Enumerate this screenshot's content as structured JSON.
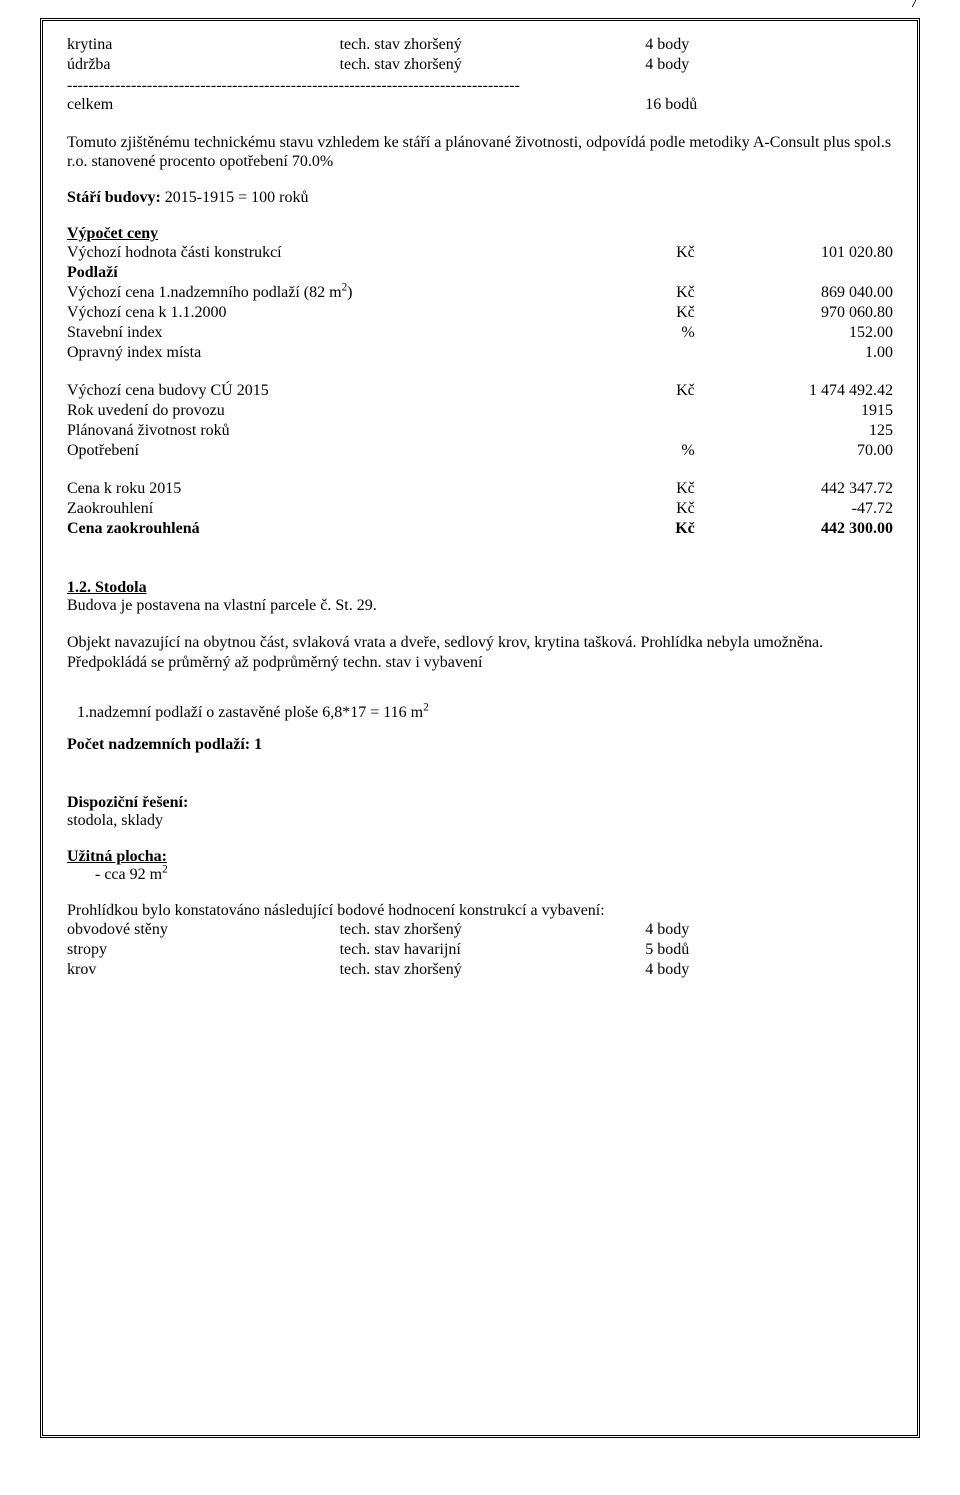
{
  "page_number": "7",
  "top_items": [
    {
      "name": "krytina",
      "state": "tech. stav zhoršený",
      "points": "4 body"
    },
    {
      "name": "údržba",
      "state": "tech. stav zhoršený",
      "points": "4 body"
    }
  ],
  "dashes": "-------------------------------------------------------------------------------------",
  "celkem": {
    "label": "celkem",
    "value": "16 bodů"
  },
  "intro_para": "Tomuto zjištěnému technickému stavu vzhledem ke stáří a plánované životnosti, odpovídá podle metodiky A-Consult plus spol.s r.o. stanovené procento opotřebení 70.0%",
  "stari_budovy_label": "Stáří budovy:",
  "stari_budovy_value": "2015-1915 = 100 roků",
  "vypocet_ceny_title": "Výpočet ceny",
  "rows1": [
    {
      "label": "Výchozí hodnota části konstrukcí",
      "unit": "Kč",
      "value": "101 020.80"
    },
    {
      "label": "Podlaží",
      "unit": "",
      "value": "",
      "bold": true
    },
    {
      "label_html": "Výchozí cena 1.nadzemního podlaží (82 m<sup>2</sup>)",
      "unit": "Kč",
      "value": "869 040.00"
    },
    {
      "label": "Výchozí cena k 1.1.2000",
      "unit": "Kč",
      "value": "970 060.80"
    },
    {
      "label": "Stavební index",
      "unit": "%",
      "value": "152.00"
    },
    {
      "label": "Opravný index místa",
      "unit": "",
      "value": "1.00"
    }
  ],
  "rows2": [
    {
      "label": "Výchozí cena budovy CÚ 2015",
      "unit": "Kč",
      "value": "1 474 492.42"
    },
    {
      "label": "Rok uvedení do provozu",
      "unit": "",
      "value": "1915"
    },
    {
      "label": "Plánovaná životnost roků",
      "unit": "",
      "value": "125"
    },
    {
      "label": "Opotřebení",
      "unit": "%",
      "value": "70.00"
    }
  ],
  "rows3": [
    {
      "label": "Cena k roku 2015",
      "unit": "Kč",
      "value": "442 347.72"
    },
    {
      "label": "Zaokrouhlení",
      "unit": "Kč",
      "value": "-47.72"
    },
    {
      "label": "Cena zaokrouhlená",
      "unit": "Kč",
      "value": "442 300.00",
      "bold": true
    }
  ],
  "section2_title": "1.2. Stodola",
  "section2_sub": "Budova je postavena na vlastní parcele č. St. 29.",
  "section2_para": "Objekt navazující na obytnou část, svlaková vrata a dveře, sedlový krov, krytina tašková. Prohlídka nebyla umožněna. Předpokládá se průměrný až podprůměrný techn. stav i vybavení",
  "nadzemni_line_pre": "1.nadzemní podlaží o zastavěné ploše 6,8*17 = 116 m",
  "nadzemni_sup": "2",
  "pocet_nadzemnich": "Počet nadzemních podlaží: 1",
  "dispozicni_title": "Dispoziční řešení:",
  "dispozicni_value": "stodola, sklady",
  "uzitna_title": "Užitná plocha:",
  "uzitna_bullet_pre": "- cca 92 m",
  "uzitna_sup": "2",
  "prohlidkou": "Prohlídkou bylo konstatováno následující bodové hodnocení konstrukcí a vybavení:",
  "bottom_items": [
    {
      "name": "obvodové stěny",
      "state": "tech. stav zhoršený",
      "points": "4 body"
    },
    {
      "name": "stropy",
      "state": "tech. stav havarijní",
      "points": "5 bodů"
    },
    {
      "name": "krov",
      "state": "tech. stav zhoršený",
      "points": "4 body"
    }
  ]
}
